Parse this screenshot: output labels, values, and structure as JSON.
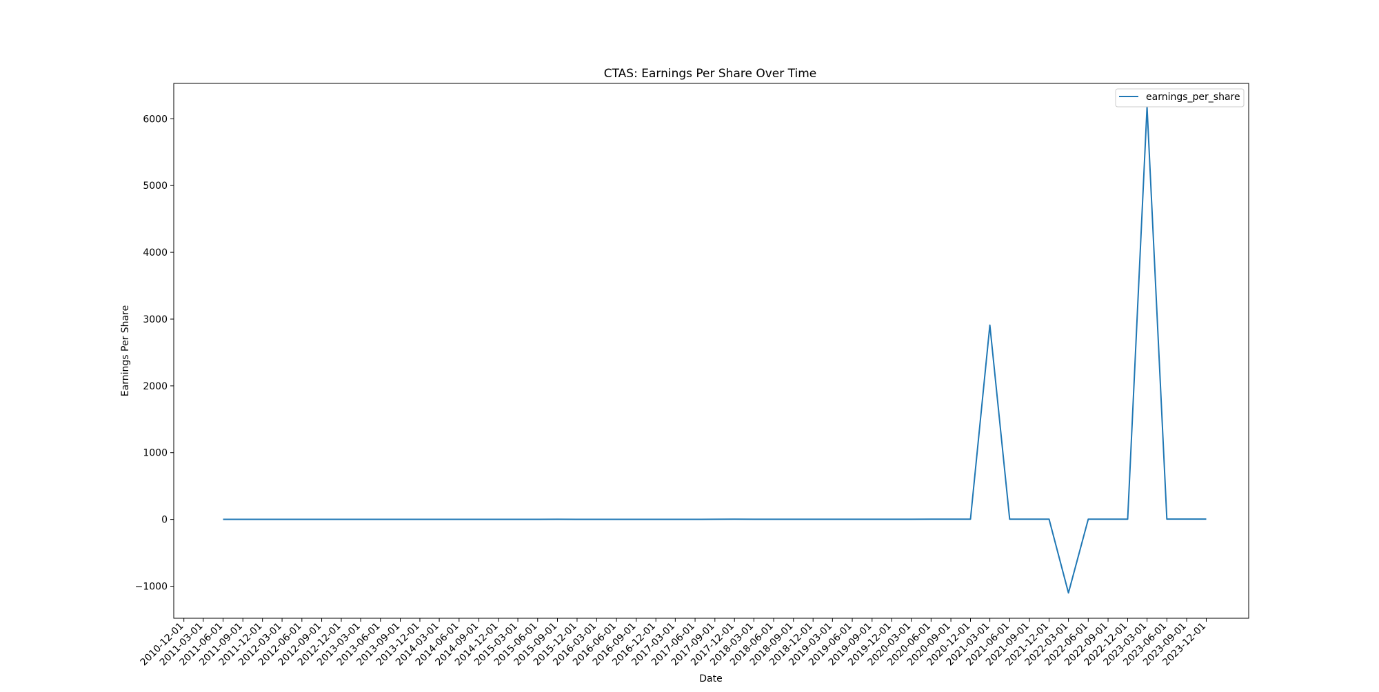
{
  "chart_data": {
    "type": "line",
    "title": "CTAS: Earnings Per Share Over Time",
    "xlabel": "Date",
    "ylabel": "Earnings Per Share",
    "ylim": [
      -1480,
      6530
    ],
    "yticks": [
      -1000,
      0,
      1000,
      2000,
      3000,
      4000,
      5000,
      6000
    ],
    "ytick_labels": [
      "−1000",
      "0",
      "1000",
      "2000",
      "3000",
      "4000",
      "5000",
      "6000"
    ],
    "xlim": [
      "2010-10-15",
      "2024-06-15"
    ],
    "xtick_labels": [
      "2010-12-01",
      "2011-03-01",
      "2011-06-01",
      "2011-09-01",
      "2011-12-01",
      "2012-03-01",
      "2012-06-01",
      "2012-09-01",
      "2012-12-01",
      "2013-03-01",
      "2013-06-01",
      "2013-09-01",
      "2013-12-01",
      "2014-03-01",
      "2014-06-01",
      "2014-09-01",
      "2014-12-01",
      "2015-03-01",
      "2015-06-01",
      "2015-09-01",
      "2015-12-01",
      "2016-03-01",
      "2016-06-01",
      "2016-09-01",
      "2016-12-01",
      "2017-03-01",
      "2017-06-01",
      "2017-09-01",
      "2017-12-01",
      "2018-03-01",
      "2018-06-01",
      "2018-09-01",
      "2018-12-01",
      "2019-03-01",
      "2019-06-01",
      "2019-09-01",
      "2019-12-01",
      "2020-03-01",
      "2020-06-01",
      "2020-09-01",
      "2020-12-01",
      "2021-03-01",
      "2021-06-01",
      "2021-09-01",
      "2021-12-01",
      "2022-03-01",
      "2022-06-01",
      "2022-09-01",
      "2022-12-01",
      "2023-03-01",
      "2023-06-01",
      "2023-09-01",
      "2023-12-01"
    ],
    "grid": false,
    "legend_position": "top-right",
    "series": [
      {
        "name": "earnings_per_share",
        "color": "#1f77b4",
        "x": [
          "2011-06-01",
          "2011-09-01",
          "2011-12-01",
          "2012-03-01",
          "2012-06-01",
          "2012-09-01",
          "2012-12-01",
          "2013-03-01",
          "2013-06-01",
          "2013-09-01",
          "2013-12-01",
          "2014-03-01",
          "2014-06-01",
          "2014-09-01",
          "2014-12-01",
          "2015-03-01",
          "2015-06-01",
          "2015-09-01",
          "2015-12-01",
          "2016-03-01",
          "2016-06-01",
          "2016-09-01",
          "2016-12-01",
          "2017-03-01",
          "2017-06-01",
          "2017-09-01",
          "2017-12-01",
          "2018-03-01",
          "2018-06-01",
          "2018-09-01",
          "2018-12-01",
          "2019-03-01",
          "2019-06-01",
          "2019-09-01",
          "2019-12-01",
          "2020-03-01",
          "2020-06-01",
          "2020-09-01",
          "2020-12-01",
          "2021-03-01",
          "2021-06-01",
          "2021-09-01",
          "2021-12-01",
          "2022-03-01",
          "2022-06-01",
          "2022-09-01",
          "2022-12-01",
          "2023-03-01",
          "2023-06-01",
          "2023-09-01",
          "2023-12-01"
        ],
        "values": [
          0.6,
          0.7,
          0.6,
          0.7,
          0.8,
          0.8,
          0.8,
          0.9,
          0.9,
          0.9,
          0.9,
          1.0,
          1.0,
          1.1,
          1.0,
          1.1,
          1.2,
          3.0,
          1.2,
          1.4,
          1.5,
          1.5,
          1.6,
          1.5,
          1.7,
          2.0,
          3.5,
          2.2,
          2.6,
          2.5,
          2.8,
          2.7,
          3.1,
          3.0,
          2.8,
          2.0,
          3.4,
          3.5,
          3.3,
          2910,
          3.7,
          3.4,
          3.6,
          -1100,
          4.2,
          4.0,
          3.9,
          6180,
          4.8,
          4.6,
          4.9
        ]
      }
    ]
  }
}
